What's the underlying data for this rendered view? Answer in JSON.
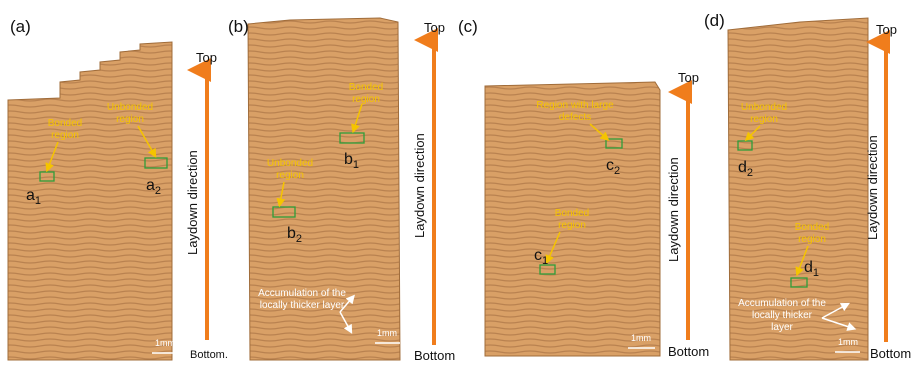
{
  "panels": [
    {
      "label": "(a)",
      "top": "Top",
      "bottom": "Bottom.",
      "direction": "Laydown direction",
      "scale": "1mm",
      "annotations": [
        {
          "lines": [
            "Bonded",
            "region"
          ]
        },
        {
          "lines": [
            "Unbonded",
            "region"
          ]
        }
      ],
      "regions": [
        {
          "letter": "a",
          "sub": "1"
        },
        {
          "letter": "a",
          "sub": "2"
        }
      ]
    },
    {
      "label": "(b)",
      "top": "Top",
      "bottom": "Bottom",
      "direction": "Laydown direction",
      "scale": "1mm",
      "annotations": [
        {
          "lines": [
            "Bonded",
            "region"
          ]
        },
        {
          "lines": [
            "Unbonded",
            "region"
          ]
        },
        {
          "lines": [
            "Accumulation of the",
            "locally thicker layer"
          ]
        }
      ],
      "regions": [
        {
          "letter": "b",
          "sub": "1"
        },
        {
          "letter": "b",
          "sub": "2"
        }
      ]
    },
    {
      "label": "(c)",
      "top": "Top",
      "bottom": "Bottom",
      "direction": "Laydown direction",
      "scale": "1mm",
      "annotations": [
        {
          "lines": [
            "Region with large",
            "defects"
          ]
        },
        {
          "lines": [
            "Bonded",
            "region"
          ]
        }
      ],
      "regions": [
        {
          "letter": "c",
          "sub": "1"
        },
        {
          "letter": "c",
          "sub": "2"
        }
      ]
    },
    {
      "label": "(d)",
      "top": "Top",
      "bottom": "Bottom",
      "direction": "Laydown direction",
      "scale": "1mm",
      "annotations": [
        {
          "lines": [
            "Unbonded",
            "region"
          ]
        },
        {
          "lines": [
            "Bonded",
            "region"
          ]
        },
        {
          "lines": [
            "Accumulation of the",
            "locally thicker",
            "layer"
          ]
        }
      ],
      "regions": [
        {
          "letter": "d",
          "sub": "1"
        },
        {
          "letter": "d",
          "sub": "2"
        }
      ]
    }
  ]
}
